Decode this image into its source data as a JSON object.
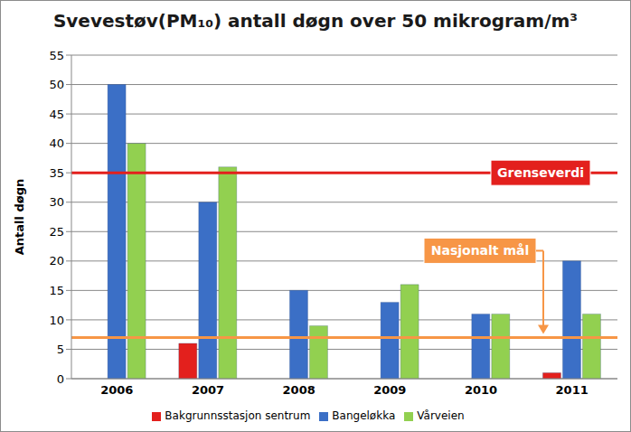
{
  "chart_data": {
    "type": "bar",
    "title": "Svevestøv(PM₁₀) antall døgn over 50 mikrogram/m³",
    "y_label": "Antall døgn",
    "categories": [
      "2006",
      "2007",
      "2008",
      "2009",
      "2010",
      "2011"
    ],
    "series": [
      {
        "name": "Bakgrunnsstasjon sentrum",
        "color": "#e3201d",
        "values": [
          null,
          6,
          null,
          null,
          null,
          1
        ]
      },
      {
        "name": "Bangeløkka",
        "color": "#3b6fc6",
        "values": [
          50,
          30,
          15,
          13,
          11,
          20
        ]
      },
      {
        "name": "Vårveien",
        "color": "#92d050",
        "values": [
          40,
          36,
          9,
          16,
          11,
          11
        ]
      }
    ],
    "ylim": [
      0,
      55
    ],
    "yticks": [
      0,
      5,
      10,
      15,
      20,
      25,
      30,
      35,
      40,
      45,
      50,
      55
    ],
    "grid": true,
    "legend": "bottom",
    "annotations": [
      {
        "label": "Grenseverdi",
        "value": 35,
        "color": "#e3201d"
      },
      {
        "label": "Nasjonalt mål",
        "value": 7,
        "color": "#f79646"
      }
    ]
  }
}
